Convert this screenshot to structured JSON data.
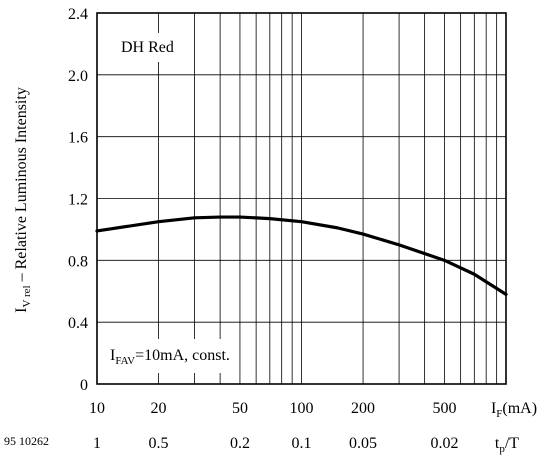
{
  "figure_id": "95 10262",
  "chart_data": {
    "type": "line",
    "ylabel_main": "I",
    "ylabel_sub": "V rel",
    "ylabel_rest": " – Relative Luminous Intensity",
    "xlabel_main": "I",
    "xlabel_sub": "F",
    "xlabel_rest": "(mA)",
    "x2label_main": "t",
    "x2label_sub": "p",
    "x2label_rest": "/T",
    "annotation_dh": "DH Red",
    "annotation_ifav_main": "I",
    "annotation_ifav_sub": "FAV",
    "annotation_ifav_rest": "=10mA, const.",
    "x_scale": "log",
    "xlim": [
      10,
      1000
    ],
    "ylim": [
      0,
      2.4
    ],
    "grid": true,
    "yticks": [
      "0",
      "0.4",
      "0.8",
      "1.2",
      "1.6",
      "2.0",
      "2.4"
    ],
    "ytick_values": [
      0,
      0.4,
      0.8,
      1.2,
      1.6,
      2.0,
      2.4
    ],
    "xticks": [
      "10",
      "20",
      "50",
      "100",
      "200",
      "500"
    ],
    "xtick_values": [
      10,
      20,
      50,
      100,
      200,
      500
    ],
    "x2ticks": [
      "1",
      "0.5",
      "0.2",
      "0.1",
      "0.05",
      "0.02"
    ],
    "series": [
      {
        "x": [
          10,
          20,
          30,
          40,
          50,
          70,
          100,
          150,
          200,
          300,
          500,
          700,
          1000
        ],
        "y": [
          0.99,
          1.05,
          1.075,
          1.08,
          1.08,
          1.07,
          1.05,
          1.01,
          0.97,
          0.9,
          0.8,
          0.71,
          0.58
        ]
      }
    ]
  }
}
